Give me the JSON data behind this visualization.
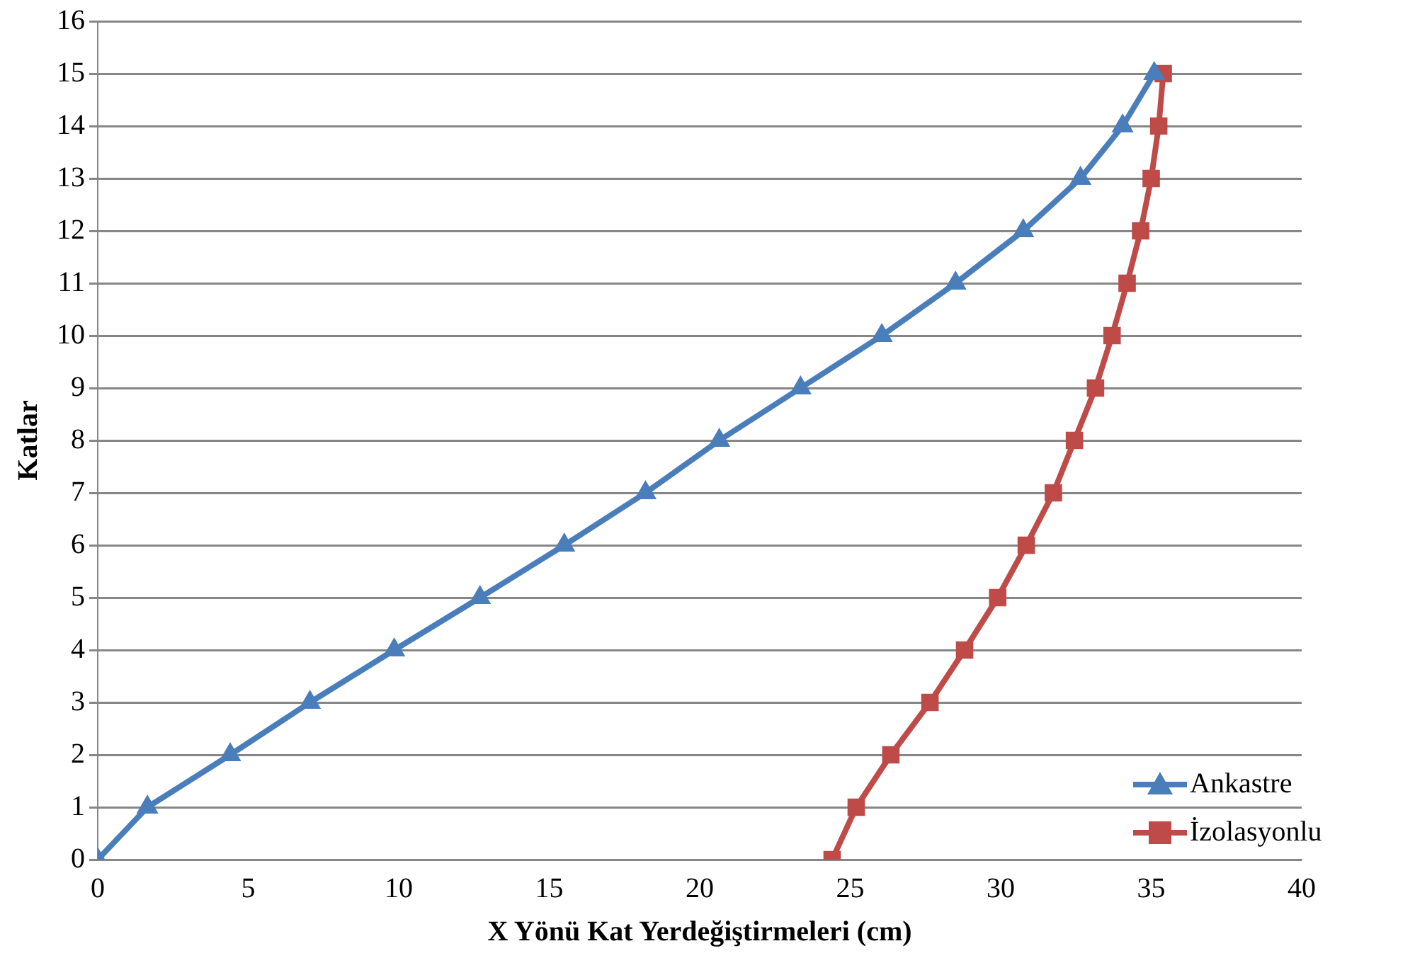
{
  "chart_data": {
    "type": "line",
    "xlabel": "X Yönü Kat Yerdeğiştirmeleri (cm)",
    "ylabel": "Katlar",
    "xlim": [
      0,
      40
    ],
    "xticks": [
      0,
      5,
      10,
      15,
      20,
      25,
      30,
      35,
      40
    ],
    "ylim": [
      0,
      16
    ],
    "yticks": [
      0,
      1,
      2,
      3,
      4,
      5,
      6,
      7,
      8,
      9,
      10,
      11,
      12,
      13,
      14,
      15,
      16
    ],
    "grid": "y",
    "legend": "bottom right",
    "series": [
      {
        "name": "Ankastre",
        "color": "#4a7ebb",
        "marker": "triangle",
        "x": [
          0,
          1.65,
          4.4,
          7.05,
          9.85,
          12.7,
          15.5,
          18.2,
          20.65,
          23.35,
          26.05,
          28.5,
          30.75,
          32.65,
          34.05,
          35.1
        ],
        "values": [
          0,
          1,
          2,
          3,
          4,
          5,
          6,
          7,
          8,
          9,
          10,
          11,
          12,
          13,
          14,
          15
        ]
      },
      {
        "name": "İzolasyonlu",
        "color": "#be4b48",
        "marker": "square",
        "x": [
          24.4,
          25.2,
          26.35,
          27.65,
          28.8,
          29.9,
          30.85,
          31.75,
          32.45,
          33.15,
          33.7,
          34.2,
          34.65,
          35,
          35.25,
          35.4
        ],
        "values": [
          0,
          1,
          2,
          3,
          4,
          5,
          6,
          7,
          8,
          9,
          10,
          11,
          12,
          13,
          14,
          15
        ]
      }
    ]
  }
}
